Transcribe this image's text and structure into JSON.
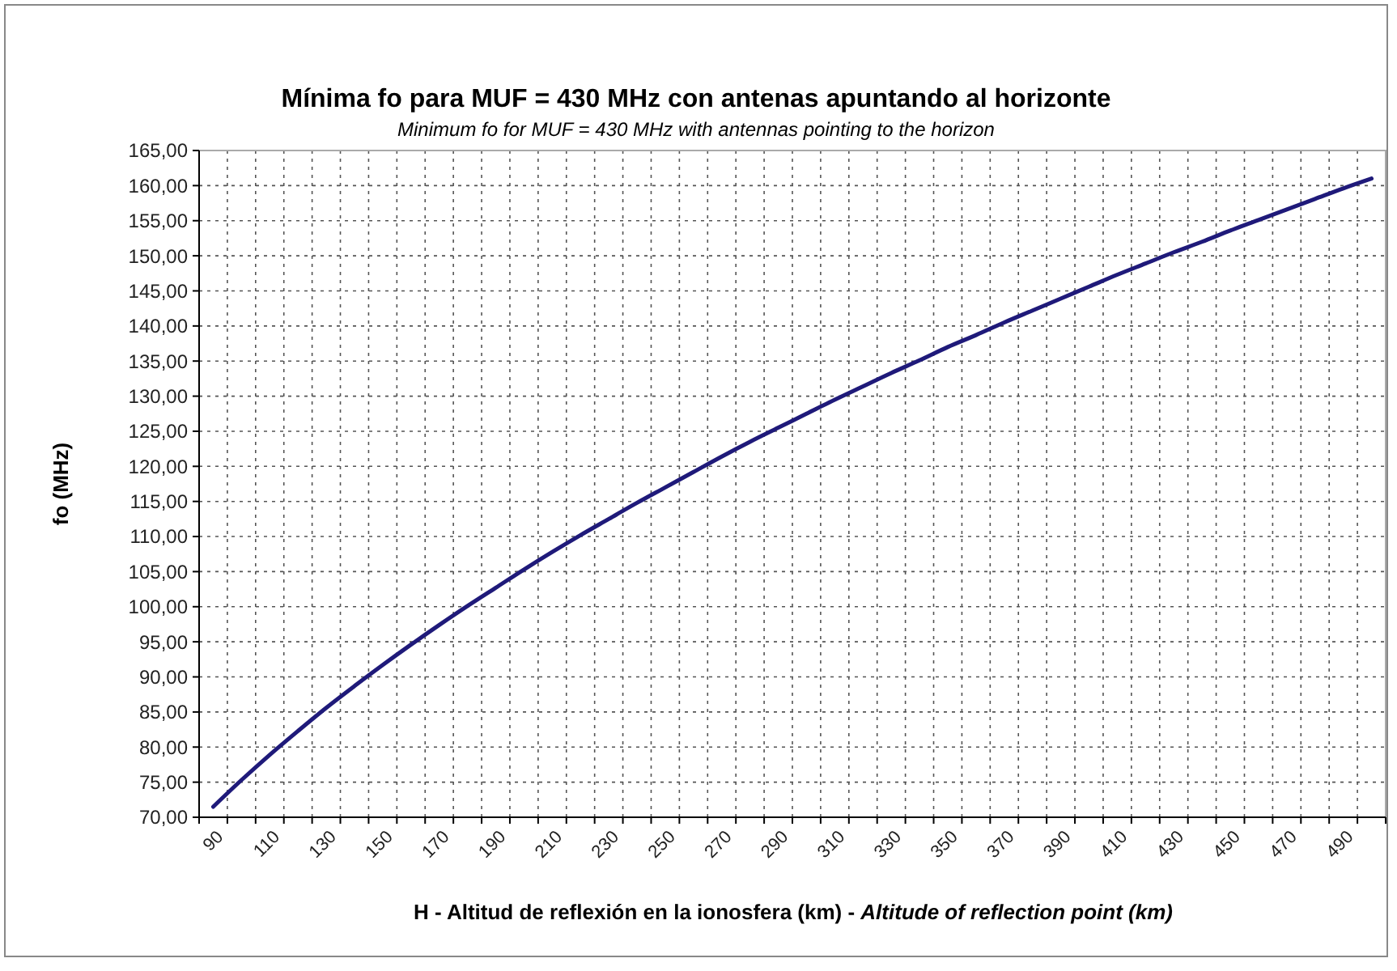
{
  "chart_data": {
    "type": "line",
    "title": "Mínima fo para MUF = 430 MHz con antenas apuntando al horizonte",
    "subtitle": "Minimum fo for MUF = 430 MHz with antennas pointing to the horizon",
    "xlabel": "H - Altitud de reflexión en la ionosfera (km) - Altitude of reflection point (km)",
    "ylabel": "fo (MHz)",
    "categories": [
      "90",
      null,
      "110",
      null,
      "130",
      null,
      "150",
      null,
      "170",
      null,
      "190",
      null,
      "210",
      null,
      "230",
      null,
      "250",
      null,
      "270",
      null,
      "290",
      null,
      "310",
      null,
      "330",
      null,
      "350",
      null,
      "370",
      null,
      "390",
      null,
      "410",
      null,
      "430",
      null,
      "450",
      null,
      "470",
      null,
      "490",
      null
    ],
    "series": [
      {
        "color": "#1f1a7a",
        "values": [
          71.5,
          75.3,
          78.9,
          82.3,
          85.6,
          88.7,
          91.7,
          94.6,
          97.4,
          100.1,
          102.7,
          105.3,
          107.8,
          110.2,
          112.5,
          114.8,
          117.0,
          119.2,
          121.4,
          123.5,
          125.5,
          127.5,
          129.5,
          131.4,
          133.3,
          135.1,
          137.0,
          138.7,
          140.5,
          142.2,
          143.9,
          145.6,
          147.3,
          148.9,
          150.5,
          152.0,
          153.6,
          155.1,
          156.6,
          158.1,
          159.6,
          161.0
        ]
      }
    ],
    "ylim": [
      70,
      165
    ],
    "yticks": [
      {
        "value": 70,
        "label": "70,00"
      },
      {
        "value": 75,
        "label": "75,00"
      },
      {
        "value": 80,
        "label": "80,00"
      },
      {
        "value": 85,
        "label": "85,00"
      },
      {
        "value": 90,
        "label": "90,00"
      },
      {
        "value": 95,
        "label": "95,00"
      },
      {
        "value": 100,
        "label": "100,00"
      },
      {
        "value": 105,
        "label": "105,00"
      },
      {
        "value": 110,
        "label": "110,00"
      },
      {
        "value": 115,
        "label": "115,00"
      },
      {
        "value": 120,
        "label": "120,00"
      },
      {
        "value": 125,
        "label": "125,00"
      },
      {
        "value": 130,
        "label": "130,00"
      },
      {
        "value": 135,
        "label": "135,00"
      },
      {
        "value": 140,
        "label": "140,00"
      },
      {
        "value": 145,
        "label": "145,00"
      },
      {
        "value": 150,
        "label": "150,00"
      },
      {
        "value": 155,
        "label": "155,00"
      },
      {
        "value": 160,
        "label": "160,00"
      },
      {
        "value": 165,
        "label": "165,00"
      }
    ],
    "grid": true,
    "marker": "none",
    "line_style": "solid"
  }
}
